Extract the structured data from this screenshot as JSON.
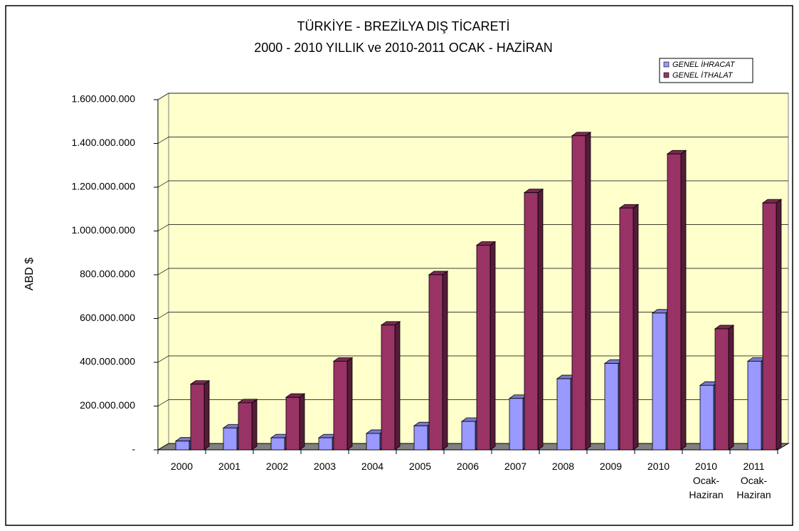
{
  "chart_data": {
    "type": "bar3d",
    "title": "TÜRKİYE - BREZİLYA DIŞ TİCARETİ",
    "subtitle": "2000 - 2010 YILLIK ve 2010-2011 OCAK - HAZİRAN",
    "y_label": "ABD $",
    "categories": [
      [
        "2000"
      ],
      [
        "2001"
      ],
      [
        "2002"
      ],
      [
        "2003"
      ],
      [
        "2004"
      ],
      [
        "2005"
      ],
      [
        "2006"
      ],
      [
        "2007"
      ],
      [
        "2008"
      ],
      [
        "2009"
      ],
      [
        "2010"
      ],
      [
        "2010",
        "Ocak-",
        "Haziran"
      ],
      [
        "2011",
        "Ocak-",
        "Haziran"
      ]
    ],
    "series": [
      {
        "name": "GENEL İHRACAT",
        "color": "#9999ff",
        "values": [
          40000000,
          100000000,
          55000000,
          55000000,
          75000000,
          110000000,
          130000000,
          235000000,
          325000000,
          395000000,
          625000000,
          295000000,
          405000000
        ]
      },
      {
        "name": "GENEL İTHALAT",
        "color": "#993366",
        "values": [
          300000000,
          215000000,
          240000000,
          405000000,
          570000000,
          800000000,
          935000000,
          1175000000,
          1435000000,
          1105000000,
          1352000000,
          553000000,
          1128000000
        ]
      }
    ],
    "ylim": [
      0,
      1600000000
    ],
    "yticks": [
      {
        "value": 0,
        "label": "-"
      },
      {
        "value": 200000000,
        "label": "200.000.000"
      },
      {
        "value": 400000000,
        "label": "400.000.000"
      },
      {
        "value": 600000000,
        "label": "600.000.000"
      },
      {
        "value": 800000000,
        "label": "800.000.000"
      },
      {
        "value": 1000000000,
        "label": "1.000.000.000"
      },
      {
        "value": 1200000000,
        "label": "1.200.000.000"
      },
      {
        "value": 1400000000,
        "label": "1.400.000.000"
      },
      {
        "value": 1600000000,
        "label": "1.600.000.000"
      }
    ],
    "grid": true,
    "wall_color": "#ffffcc",
    "floor_color": "#808080",
    "legend": "top-right"
  }
}
